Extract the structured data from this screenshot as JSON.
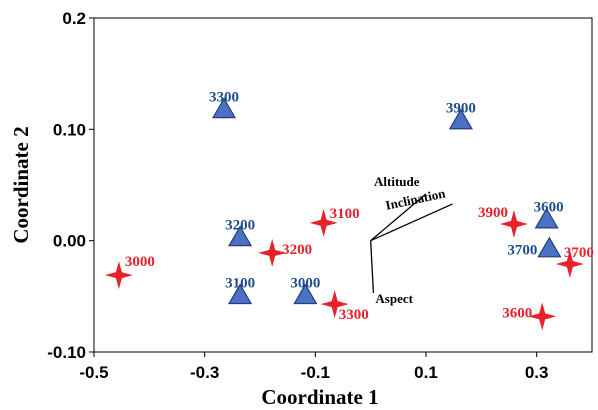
{
  "chart_data": {
    "type": "scatter",
    "title": "",
    "xlabel": "Coordinate 1",
    "ylabel": "Coordinate 2",
    "xlim": [
      -0.5,
      0.4
    ],
    "ylim": [
      -0.1,
      0.2
    ],
    "grid": false,
    "x_ticks": [
      {
        "value": -0.5,
        "label": "-0.5"
      },
      {
        "value": -0.3,
        "label": "-0.3"
      },
      {
        "value": -0.1,
        "label": "-0.1"
      },
      {
        "value": 0.1,
        "label": "0.1"
      },
      {
        "value": 0.3,
        "label": "0.3"
      }
    ],
    "y_ticks": [
      {
        "value": -0.1,
        "label": "-0.10"
      },
      {
        "value": 0.0,
        "label": "0.00"
      },
      {
        "value": 0.1,
        "label": "0.10"
      },
      {
        "value": 0.2,
        "label": "0.2"
      }
    ],
    "series": [
      {
        "marker": "triangle",
        "color": "#4a72c4",
        "edge_color": "#1f3f7a",
        "label_color": "#1f4e8c",
        "points": [
          {
            "label": "3300",
            "x": -0.265,
            "y": 0.117
          },
          {
            "label": "3900",
            "x": 0.163,
            "y": 0.107
          },
          {
            "label": "3200",
            "x": -0.236,
            "y": 0.002
          },
          {
            "label": "3600",
            "x": 0.318,
            "y": 0.018
          },
          {
            "label": "3700",
            "x": 0.323,
            "y": -0.008
          },
          {
            "label": "3100",
            "x": -0.236,
            "y": -0.05
          },
          {
            "label": "3000",
            "x": -0.118,
            "y": -0.05
          }
        ]
      },
      {
        "marker": "star4",
        "color": "#e8222b",
        "label_color": "#e8222b",
        "points": [
          {
            "label": "3000",
            "x": -0.455,
            "y": -0.031
          },
          {
            "label": "3200",
            "x": -0.178,
            "y": -0.011
          },
          {
            "label": "3100",
            "x": -0.085,
            "y": 0.016
          },
          {
            "label": "3300",
            "x": -0.065,
            "y": -0.057
          },
          {
            "label": "3900",
            "x": 0.259,
            "y": 0.015
          },
          {
            "label": "3700",
            "x": 0.36,
            "y": -0.021
          },
          {
            "label": "3600",
            "x": 0.31,
            "y": -0.068
          }
        ]
      }
    ],
    "vectors": [
      {
        "label": "Altitude",
        "x": 0.1,
        "y": 0.042
      },
      {
        "label": "Inclination",
        "x": 0.148,
        "y": 0.033
      },
      {
        "label": "Aspect",
        "x": 0.005,
        "y": -0.047
      }
    ]
  }
}
